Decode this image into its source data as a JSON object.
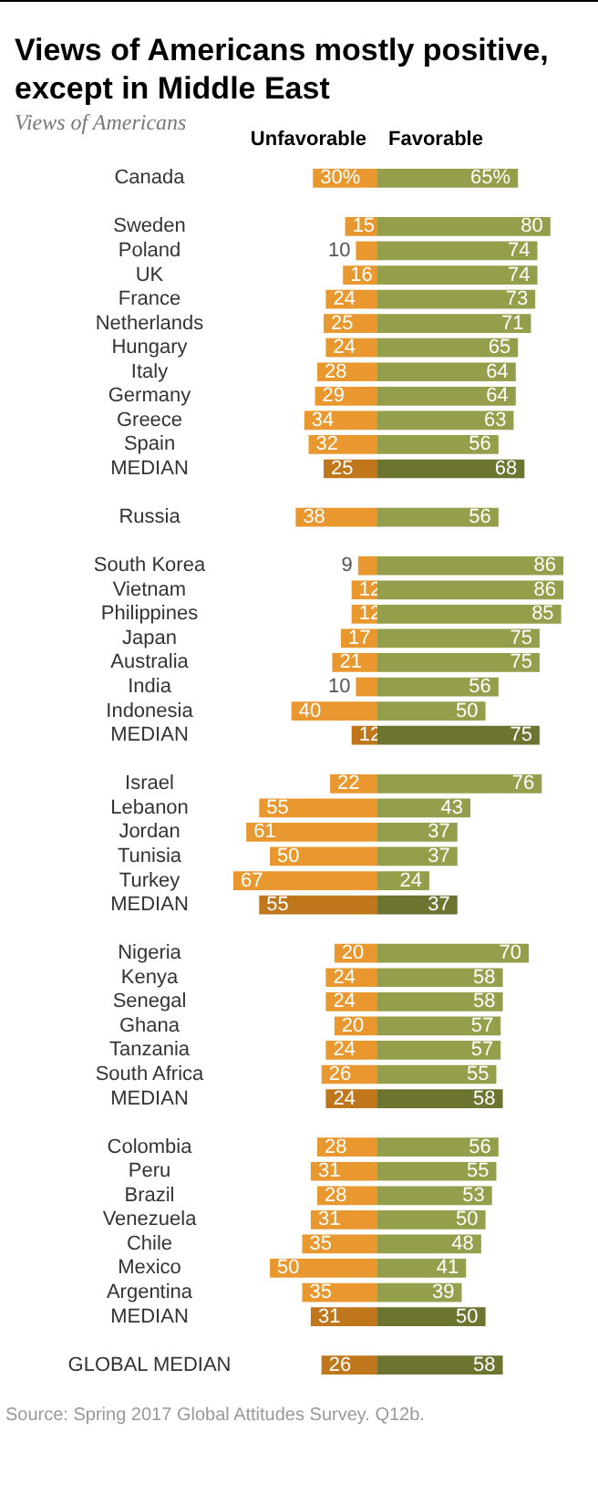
{
  "chart_data": [
    {
      "type": "bar",
      "orientation": "horizontal",
      "legend": false,
      "title": "Views of Americans mostly positive, except in Middle East",
      "subtitle": "Views of Americans",
      "annotations": [
        "Source: Spring 2017 Global Attitudes Survey. Q12b."
      ],
      "categories": [
        "Canada",
        null,
        "Sweden",
        "Poland",
        "UK",
        "France",
        "Netherlands",
        "Hungary",
        "Italy",
        "Germany",
        "Greece",
        "Spain",
        "MEDIAN",
        null,
        "Russia",
        null,
        "South Korea",
        "Vietnam",
        "Philippines",
        "Japan",
        "Australia",
        "India",
        "Indonesia",
        "MEDIAN",
        null,
        "Israel",
        "Lebanon",
        "Jordan",
        "Tunisia",
        "Turkey",
        "MEDIAN",
        null,
        "Nigeria",
        "Kenya",
        "Senegal",
        "Ghana",
        "Tanzania",
        "South Africa",
        "MEDIAN",
        null,
        "Colombia",
        "Peru",
        "Brazil",
        "Venezuela",
        "Chile",
        "Mexico",
        "Argentina",
        "MEDIAN",
        null,
        "GLOBAL MEDIAN"
      ],
      "series": [
        {
          "name": "Unfavorable",
          "values": [
            30,
            null,
            15,
            10,
            16,
            24,
            25,
            24,
            28,
            29,
            34,
            32,
            25,
            null,
            38,
            null,
            9,
            12,
            12,
            17,
            21,
            10,
            40,
            12,
            null,
            22,
            55,
            61,
            50,
            67,
            55,
            null,
            20,
            24,
            24,
            20,
            24,
            26,
            24,
            null,
            28,
            31,
            28,
            31,
            35,
            50,
            35,
            31,
            null,
            26
          ],
          "value_labels": [
            "30%",
            null,
            "15",
            "10",
            "16",
            "24",
            "25",
            "24",
            "28",
            "29",
            "34",
            "32",
            "25",
            null,
            "38",
            null,
            "9",
            "12",
            "12",
            "17",
            "21",
            "10",
            "40",
            "12",
            null,
            "22",
            "55",
            "61",
            "50",
            "67",
            "55",
            null,
            "20",
            "24",
            "24",
            "20",
            "24",
            "26",
            "24",
            null,
            "28",
            "31",
            "28",
            "31",
            "35",
            "50",
            "35",
            "31",
            null,
            "26"
          ],
          "colors": [
            "#e8982e",
            null,
            "#e8982e",
            "#e8982e",
            "#e8982e",
            "#e8982e",
            "#e8982e",
            "#e8982e",
            "#e8982e",
            "#e8982e",
            "#e8982e",
            "#e8982e",
            "#c0771b",
            null,
            "#e8982e",
            null,
            "#e8982e",
            "#e8982e",
            "#e8982e",
            "#e8982e",
            "#e8982e",
            "#e8982e",
            "#e8982e",
            "#c0771b",
            null,
            "#e8982e",
            "#e8982e",
            "#e8982e",
            "#e8982e",
            "#e8982e",
            "#c0771b",
            null,
            "#e8982e",
            "#e8982e",
            "#e8982e",
            "#e8982e",
            "#e8982e",
            "#e8982e",
            "#c0771b",
            null,
            "#e8982e",
            "#e8982e",
            "#e8982e",
            "#e8982e",
            "#e8982e",
            "#e8982e",
            "#e8982e",
            "#c0771b",
            null,
            "#c0771b"
          ]
        }
      ]
    },
    {
      "type": "bar",
      "orientation": "horizontal",
      "legend": false,
      "tick_labels": false,
      "categories": [
        null,
        null,
        null,
        null,
        null,
        null,
        null,
        null,
        null,
        null,
        null,
        null,
        null,
        null,
        null,
        null,
        null,
        null,
        null,
        null,
        null,
        null,
        null,
        null,
        null,
        null,
        null,
        null,
        null,
        null,
        null,
        null,
        null,
        null,
        null,
        null,
        null,
        null,
        null,
        null,
        null,
        null,
        null,
        null,
        null,
        null,
        null,
        null,
        null,
        null
      ],
      "series": [
        {
          "name": "Favorable",
          "values": [
            65,
            null,
            80,
            74,
            74,
            73,
            71,
            65,
            64,
            64,
            63,
            56,
            68,
            null,
            56,
            null,
            86,
            86,
            85,
            75,
            75,
            56,
            50,
            75,
            null,
            76,
            43,
            37,
            37,
            24,
            37,
            null,
            70,
            58,
            58,
            57,
            57,
            55,
            58,
            null,
            56,
            55,
            53,
            50,
            48,
            41,
            39,
            50,
            null,
            58
          ],
          "value_labels": [
            "65%",
            null,
            "80",
            "74",
            "74",
            "73",
            "71",
            "65",
            "64",
            "64",
            "63",
            "56",
            "68",
            null,
            "56",
            null,
            "86",
            "86",
            "85",
            "75",
            "75",
            "56",
            "50",
            "75",
            null,
            "76",
            "43",
            "37",
            "37",
            "24",
            "37",
            null,
            "70",
            "58",
            "58",
            "57",
            "57",
            "55",
            "58",
            null,
            "56",
            "55",
            "53",
            "50",
            "48",
            "41",
            "39",
            "50",
            null,
            "58"
          ],
          "colors": [
            "#959e4a",
            null,
            "#959e4a",
            "#959e4a",
            "#959e4a",
            "#959e4a",
            "#959e4a",
            "#959e4a",
            "#959e4a",
            "#959e4a",
            "#959e4a",
            "#959e4a",
            "#6c7430",
            null,
            "#959e4a",
            null,
            "#959e4a",
            "#959e4a",
            "#959e4a",
            "#959e4a",
            "#959e4a",
            "#959e4a",
            "#959e4a",
            "#6c7430",
            null,
            "#959e4a",
            "#959e4a",
            "#959e4a",
            "#959e4a",
            "#959e4a",
            "#6c7430",
            null,
            "#959e4a",
            "#959e4a",
            "#959e4a",
            "#959e4a",
            "#959e4a",
            "#959e4a",
            "#6c7430",
            null,
            "#959e4a",
            "#959e4a",
            "#959e4a",
            "#959e4a",
            "#959e4a",
            "#959e4a",
            "#959e4a",
            "#6c7430",
            null,
            "#6c7430"
          ]
        }
      ]
    }
  ]
}
